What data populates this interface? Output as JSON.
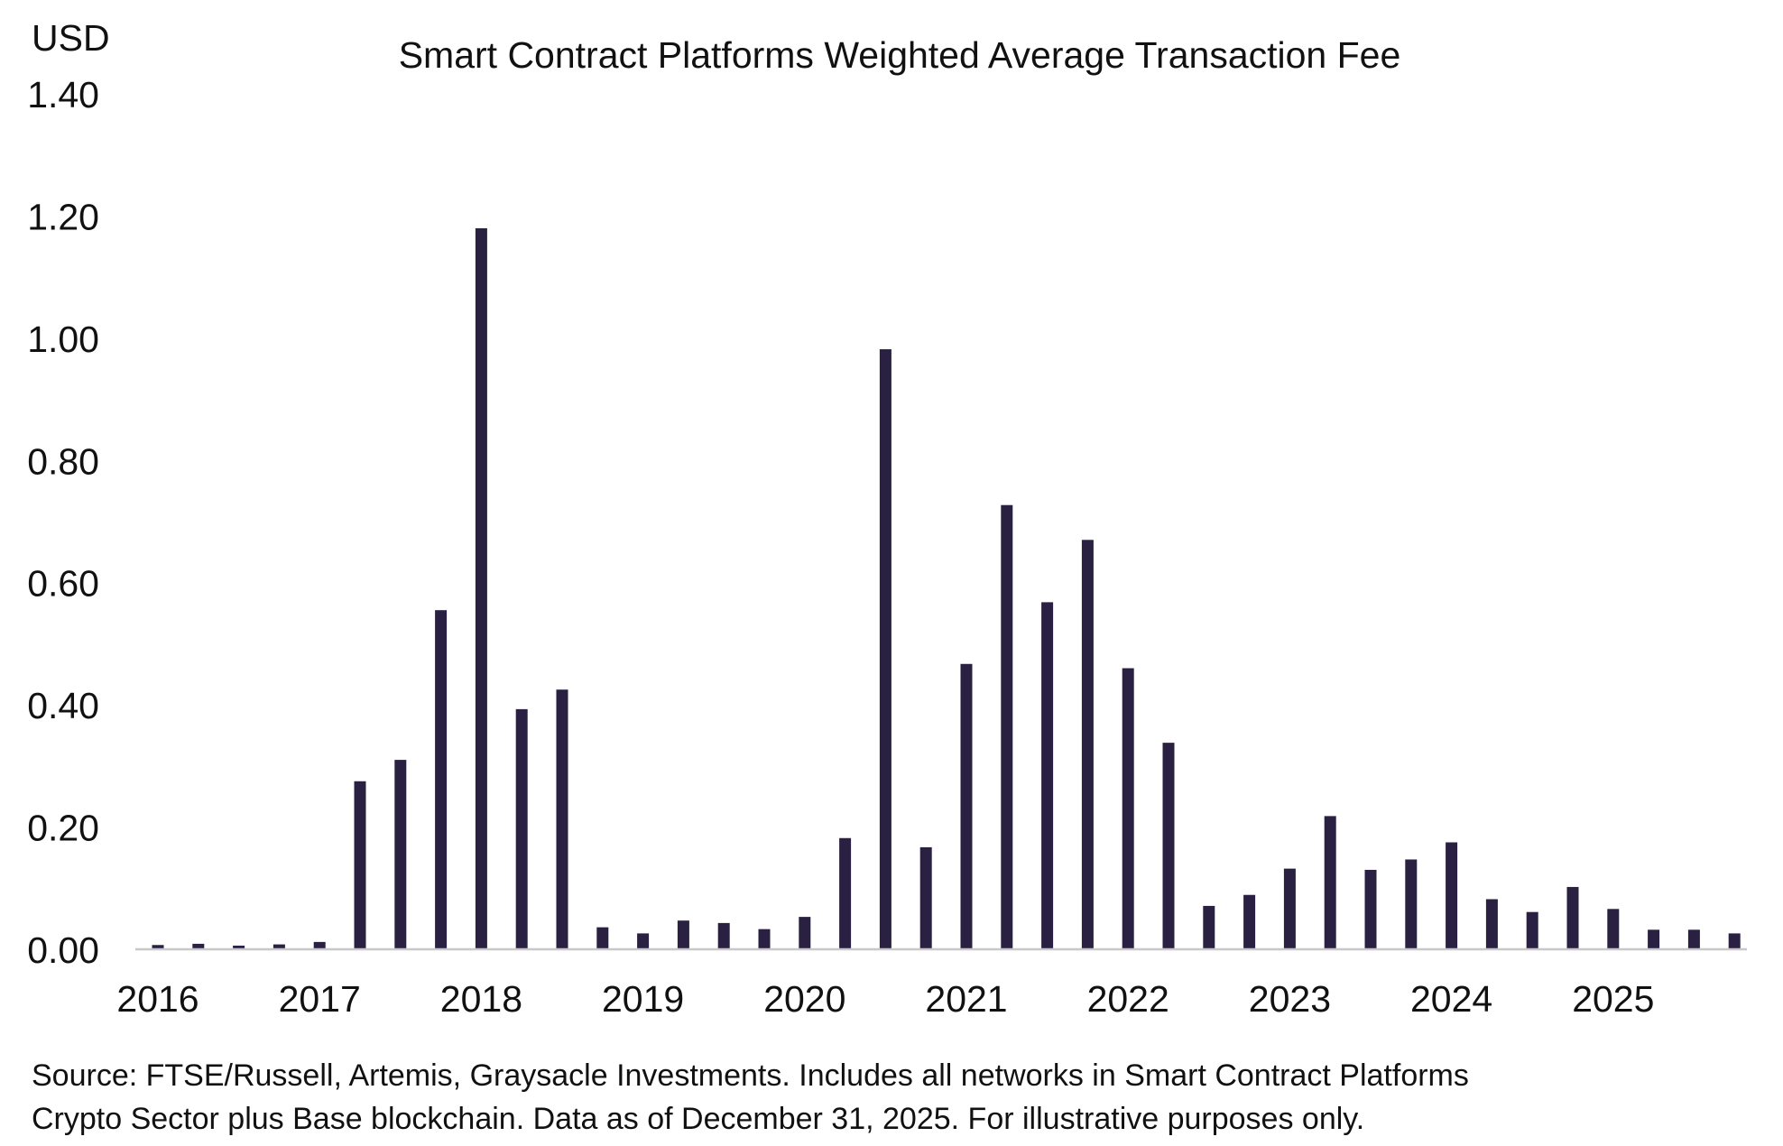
{
  "chart_data": {
    "type": "bar",
    "title": "Smart Contract Platforms Weighted Average Transaction Fee",
    "ylabel": "USD",
    "xlabel": "",
    "ylim": [
      0,
      1.4
    ],
    "yticks": [
      "0.00",
      "0.20",
      "0.40",
      "0.60",
      "0.80",
      "1.00",
      "1.20",
      "1.40"
    ],
    "ytick_values": [
      0,
      0.2,
      0.4,
      0.6,
      0.8,
      1.0,
      1.2,
      1.4
    ],
    "xtick_labels": [
      "2016",
      "2017",
      "2018",
      "2019",
      "2020",
      "2021",
      "2022",
      "2023",
      "2024",
      "2025"
    ],
    "x": [
      "2016-Q1",
      "2016-Q2",
      "2016-Q3",
      "2016-Q4",
      "2017-Q1",
      "2017-Q2",
      "2017-Q3",
      "2017-Q4",
      "2018-Q1",
      "2018-Q2",
      "2018-Q3",
      "2018-Q4",
      "2019-Q1",
      "2019-Q2",
      "2019-Q3",
      "2019-Q4",
      "2020-Q1",
      "2020-Q2",
      "2020-Q3",
      "2020-Q4",
      "2021-Q1",
      "2021-Q2",
      "2021-Q3",
      "2021-Q4",
      "2022-Q1",
      "2022-Q2",
      "2022-Q3",
      "2022-Q4",
      "2023-Q1",
      "2023-Q2",
      "2023-Q3",
      "2023-Q4",
      "2024-Q1",
      "2024-Q2",
      "2024-Q3",
      "2024-Q4",
      "2025-Q1",
      "2025-Q2",
      "2025-Q3",
      "2025-Q4"
    ],
    "values": [
      0.007,
      0.009,
      0.006,
      0.008,
      0.012,
      0.275,
      0.31,
      0.555,
      1.18,
      0.393,
      0.425,
      0.036,
      0.026,
      0.047,
      0.043,
      0.033,
      0.053,
      0.182,
      0.982,
      0.167,
      0.467,
      0.727,
      0.568,
      0.67,
      0.46,
      0.338,
      0.071,
      0.089,
      0.132,
      0.218,
      0.13,
      0.147,
      0.175,
      0.082,
      0.061,
      0.102,
      0.066,
      0.032,
      0.032,
      0.026
    ],
    "bar_color": "#2a2142",
    "axis_color": "#c8c8c8",
    "grid": false,
    "legend": "none"
  },
  "footnote": {
    "line1": "Source: FTSE/Russell, Artemis, Graysacle Investments. Includes all networks in Smart Contract Platforms",
    "line2": "Crypto Sector plus Base blockchain. Data as of December 31, 2025. For illustrative purposes only."
  }
}
